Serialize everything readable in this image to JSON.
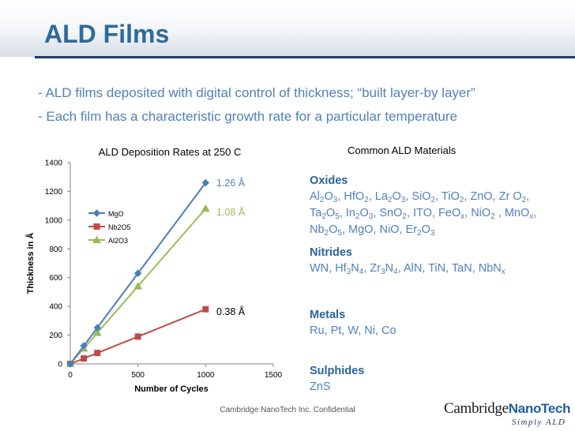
{
  "slide": {
    "title": "ALD Films",
    "bullets": [
      "- ALD films deposited with digital control of thickness; “built layer-by layer”",
      "- Each film has a characteristic growth rate for a particular temperature"
    ],
    "footer": "Cambridge NanoTech Inc. Confidential",
    "logo": {
      "main": "Cambridge",
      "accent": "NanoTech",
      "tagline": "Simply ALD"
    }
  },
  "materials": {
    "title": "Common ALD Materials",
    "categories": [
      {
        "name": "Oxides",
        "items_text": "Al2O3, HfO2, La2O3, SiO2, TiO2, ZnO, Zr O2, Ta2O5, In2O3, SnO2, ITO, FeOx, NiO2 , MnOx, Nb2O5, MgO, NiO, Er2O3"
      },
      {
        "name": "Nitrides",
        "items_text": "WN, Hf3N4, Zr3N4, AlN, TiN, TaN, NbNx"
      },
      {
        "name": "Metals",
        "items_text": "Ru, Pt, W, Ni, Co"
      },
      {
        "name": "Sulphides",
        "items_text": "ZnS"
      }
    ]
  },
  "chart_data": {
    "type": "line",
    "title": "ALD Deposition Rates at 250  C",
    "xlabel": "Number of Cycles",
    "ylabel": "Thickness in Å",
    "xlim": [
      0,
      1500
    ],
    "ylim": [
      0,
      1400
    ],
    "x_ticks": [
      0,
      500,
      1000,
      1500
    ],
    "y_ticks": [
      0,
      200,
      400,
      600,
      800,
      1000,
      1200,
      1400
    ],
    "grid": false,
    "legend_position": "upper-left",
    "series": [
      {
        "name": "MgO",
        "color": "#4a7ebb",
        "marker": "diamond",
        "x": [
          0,
          100,
          200,
          500,
          1000
        ],
        "y": [
          0,
          126,
          252,
          630,
          1260
        ],
        "annotation": "1.26 Å",
        "annotation_color": "#4f81bd"
      },
      {
        "name": "Nb2O5",
        "color": "#be4b48",
        "marker": "square",
        "x": [
          0,
          100,
          200,
          500,
          1000
        ],
        "y": [
          0,
          38,
          76,
          190,
          380
        ],
        "annotation": "0.38 Å",
        "annotation_color": "#000000"
      },
      {
        "name": "Al2O3",
        "color": "#9bbb59",
        "marker": "triangle",
        "x": [
          0,
          100,
          200,
          500,
          1000
        ],
        "y": [
          0,
          108,
          216,
          540,
          1080
        ],
        "annotation": "1.08 Å",
        "annotation_color": "#9bbb59"
      }
    ]
  }
}
